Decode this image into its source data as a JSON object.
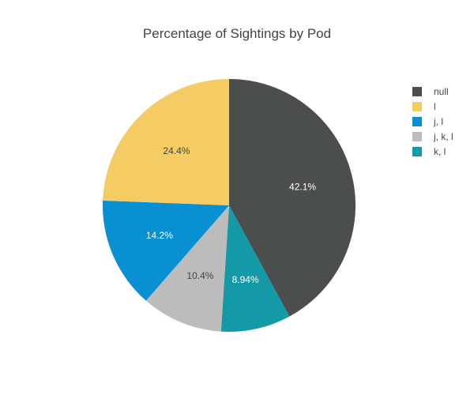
{
  "chart_data": {
    "type": "pie",
    "title": "Percentage of Sightings by Pod",
    "legend_position": "top-right",
    "slices": [
      {
        "label": "null",
        "value": 42.1,
        "display": "42.1%",
        "color": "#4b4e4d",
        "label_color": "#ffffff"
      },
      {
        "label": "k, l",
        "value": 8.94,
        "display": "8.94%",
        "color": "#139aa6",
        "label_color": "#ffffff"
      },
      {
        "label": "j, k, l",
        "value": 10.4,
        "display": "10.4%",
        "color": "#bcbcbc",
        "label_color": "#444444"
      },
      {
        "label": "j, l",
        "value": 14.2,
        "display": "14.2%",
        "color": "#0890d2",
        "label_color": "#ffffff"
      },
      {
        "label": "l",
        "value": 24.4,
        "display": "24.4%",
        "color": "#f4cc63",
        "label_color": "#444444"
      }
    ],
    "legend": [
      {
        "label": "null",
        "color": "#4b4e4d"
      },
      {
        "label": "l",
        "color": "#f4cc63"
      },
      {
        "label": "j, l",
        "color": "#0890d2"
      },
      {
        "label": "j, k, l",
        "color": "#bcbcbc"
      },
      {
        "label": "k, l",
        "color": "#139aa6"
      }
    ]
  }
}
